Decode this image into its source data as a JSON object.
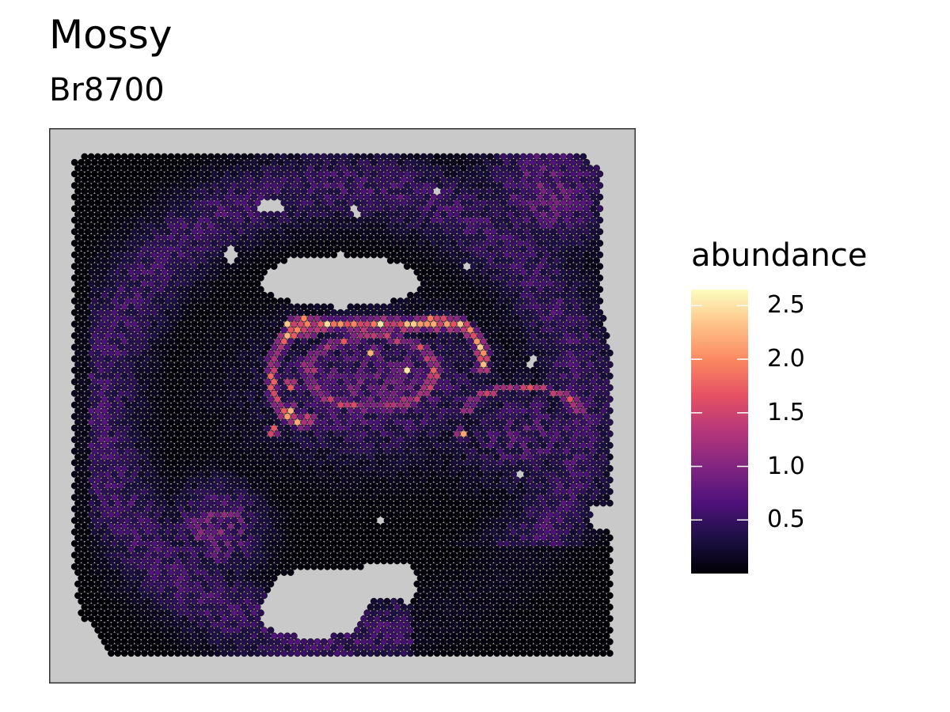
{
  "title": "Mossy",
  "subtitle": "Br8700",
  "chart_data": {
    "type": "heatmap",
    "title": "Mossy",
    "subtitle": "Br8700",
    "panel_background": "#c9c9c9",
    "colormap": "magma",
    "color_stops": [
      "#000004",
      "#1c1044",
      "#4f127b",
      "#812581",
      "#b5367a",
      "#e55064",
      "#fb8761",
      "#fec287",
      "#fcfdbf"
    ],
    "legend": {
      "title": "abundance",
      "position": "right",
      "min": 0,
      "max": 2.65,
      "ticks": [
        0.5,
        1.0,
        1.5,
        2.0,
        2.5
      ],
      "tick_labels": [
        "0.5",
        "1.0",
        "1.5",
        "2.0",
        "2.5"
      ]
    },
    "value_range": [
      0,
      2.65
    ],
    "high_abundance_region": "curved band along the hippocampal dentate gyrus (peak about 2.6)",
    "grid": false
  }
}
